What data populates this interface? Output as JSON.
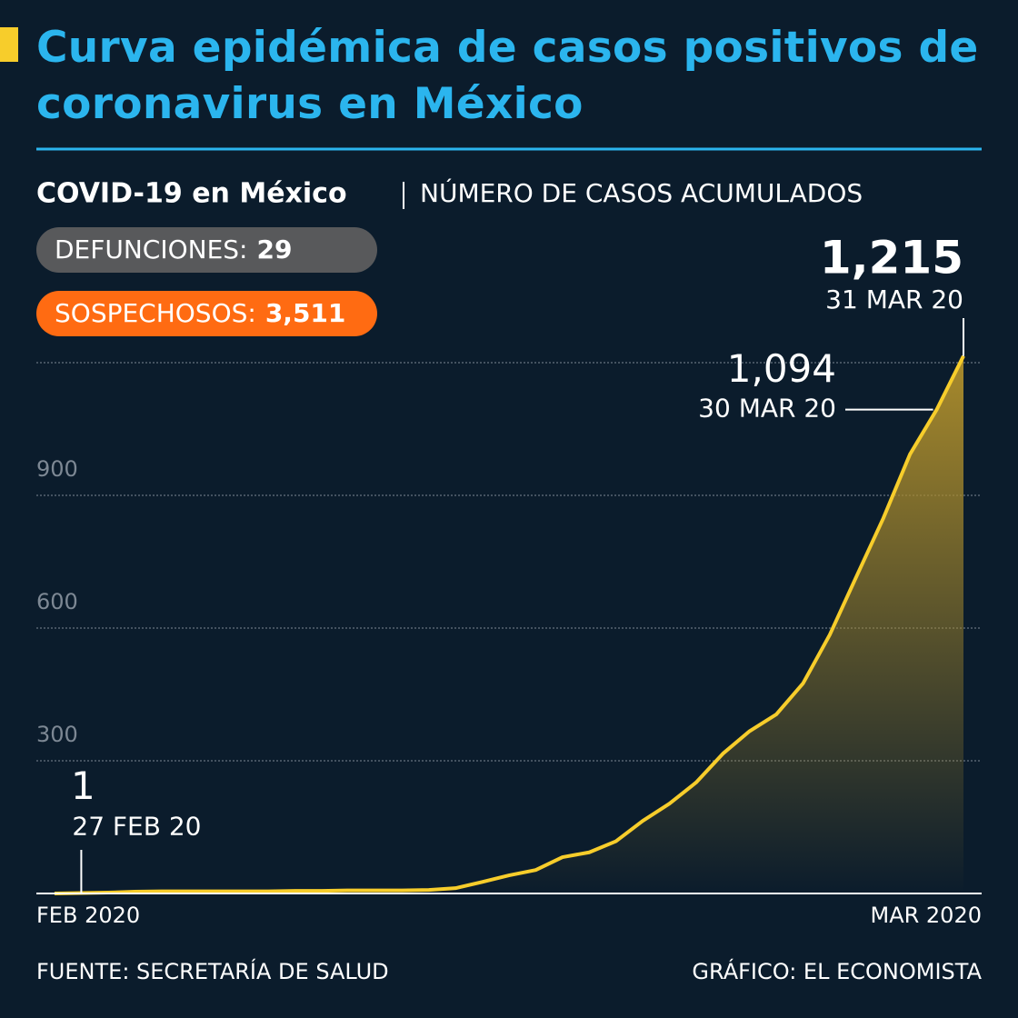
{
  "chart_data": {
    "type": "area",
    "title": "Curva epidémica de casos positivos de coronavirus en México",
    "subtitle": "COVID-19 en México",
    "subtitle_detail": "NÚMERO DE CASOS ACUMULADOS",
    "badges": [
      {
        "label": "DEFUNCIONES:",
        "value": 29,
        "color": "#58595b"
      },
      {
        "label": "SOSPECHOSOS:",
        "value": 3511,
        "value_label": "3,511",
        "color": "#ff6b12"
      }
    ],
    "categories": [
      null,
      "27 FEB 20",
      null,
      null,
      null,
      null,
      null,
      null,
      null,
      null,
      null,
      null,
      null,
      null,
      null,
      null,
      null,
      null,
      null,
      null,
      null,
      null,
      null,
      null,
      null,
      null,
      null,
      null,
      null,
      null,
      null,
      null,
      null,
      "30 MAR 20",
      "31 MAR 20"
    ],
    "values": [
      0,
      1,
      2,
      4,
      5,
      5,
      5,
      5,
      5,
      6,
      6,
      7,
      7,
      7,
      8,
      12,
      26,
      41,
      53,
      82,
      93,
      118,
      164,
      203,
      251,
      316,
      367,
      405,
      475,
      585,
      717,
      848,
      993,
      1094,
      1215
    ],
    "value_labels": [
      null,
      "1",
      null,
      null,
      null,
      null,
      null,
      null,
      null,
      null,
      null,
      null,
      null,
      null,
      null,
      null,
      null,
      null,
      null,
      null,
      null,
      null,
      null,
      null,
      null,
      null,
      null,
      null,
      null,
      null,
      null,
      null,
      null,
      "1,094",
      "1,215"
    ],
    "color": "#f7cd2b",
    "x_axis_labels": [
      "FEB 2020",
      "MAR 2020"
    ],
    "ylim": [
      0,
      1200
    ],
    "yticks": [
      300,
      600,
      900
    ],
    "gridlines": [
      300,
      600,
      900,
      1200
    ],
    "grid": true,
    "source": "FUENTE: SECRETARÍA DE SALUD",
    "credit": "GRÁFICO: EL ECONOMISTA"
  }
}
